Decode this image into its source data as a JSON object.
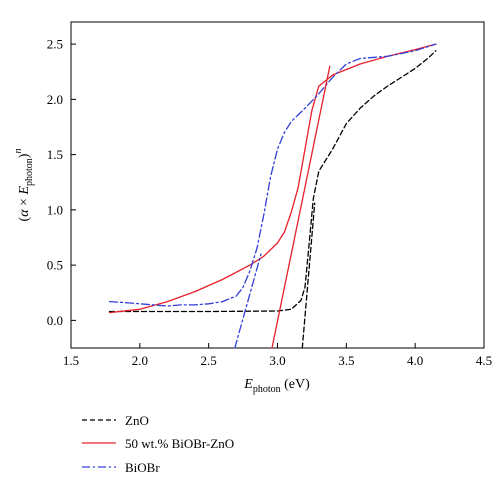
{
  "chart_data": {
    "type": "line",
    "title": "",
    "xlabel": {
      "base": "E",
      "sub": "photon",
      "unit": " (eV)"
    },
    "ylabel": {
      "lparen": "(",
      "alpha": "α",
      "times": " × ",
      "base": "E",
      "sub": "photon",
      "rparen": ")",
      "sup": "n"
    },
    "xlim": [
      1.5,
      4.5
    ],
    "ylim": [
      -0.25,
      2.7
    ],
    "xticks": [
      1.5,
      2.0,
      2.5,
      3.0,
      3.5,
      4.0,
      4.5
    ],
    "yticks": [
      0.0,
      0.5,
      1.0,
      1.5,
      2.0,
      2.5
    ],
    "xtick_labels": [
      "1.5",
      "2.0",
      "2.5",
      "3.0",
      "3.5",
      "4.0",
      "4.5"
    ],
    "ytick_labels": [
      "0.0",
      "0.5",
      "1.0",
      "1.5",
      "2.0",
      "2.5"
    ],
    "grid": false,
    "legend_position": "below-left",
    "series": [
      {
        "name": "ZnO",
        "color": "#000000",
        "style": "dashed",
        "points": [
          [
            1.78,
            0.08
          ],
          [
            2.0,
            0.08
          ],
          [
            2.5,
            0.08
          ],
          [
            3.0,
            0.085
          ],
          [
            3.1,
            0.1
          ],
          [
            3.17,
            0.18
          ],
          [
            3.2,
            0.3
          ],
          [
            3.23,
            0.7
          ],
          [
            3.26,
            1.1
          ],
          [
            3.3,
            1.35
          ],
          [
            3.4,
            1.55
          ],
          [
            3.5,
            1.78
          ],
          [
            3.6,
            1.92
          ],
          [
            3.7,
            2.03
          ],
          [
            3.8,
            2.12
          ],
          [
            3.9,
            2.2
          ],
          [
            4.0,
            2.28
          ],
          [
            4.1,
            2.38
          ],
          [
            4.15,
            2.44
          ]
        ]
      },
      {
        "name": "50 wt.% BiOBr-ZnO",
        "color": "#e8202a",
        "style": "solid",
        "points": [
          [
            1.78,
            0.07
          ],
          [
            2.0,
            0.1
          ],
          [
            2.2,
            0.17
          ],
          [
            2.4,
            0.26
          ],
          [
            2.6,
            0.37
          ],
          [
            2.8,
            0.5
          ],
          [
            2.9,
            0.58
          ],
          [
            3.0,
            0.7
          ],
          [
            3.05,
            0.8
          ],
          [
            3.1,
            0.98
          ],
          [
            3.15,
            1.2
          ],
          [
            3.2,
            1.55
          ],
          [
            3.25,
            1.9
          ],
          [
            3.3,
            2.12
          ],
          [
            3.4,
            2.22
          ],
          [
            3.6,
            2.32
          ],
          [
            3.8,
            2.39
          ],
          [
            4.0,
            2.45
          ],
          [
            4.15,
            2.5
          ]
        ]
      },
      {
        "name": "BiOBr",
        "color": "#3040d8",
        "style": "dashdot",
        "points": [
          [
            1.78,
            0.17
          ],
          [
            1.9,
            0.16
          ],
          [
            2.0,
            0.15
          ],
          [
            2.1,
            0.14
          ],
          [
            2.2,
            0.13
          ],
          [
            2.3,
            0.14
          ],
          [
            2.4,
            0.14
          ],
          [
            2.5,
            0.15
          ],
          [
            2.6,
            0.17
          ],
          [
            2.7,
            0.22
          ],
          [
            2.75,
            0.3
          ],
          [
            2.8,
            0.45
          ],
          [
            2.85,
            0.65
          ],
          [
            2.9,
            0.95
          ],
          [
            2.95,
            1.3
          ],
          [
            3.0,
            1.55
          ],
          [
            3.05,
            1.7
          ],
          [
            3.1,
            1.8
          ],
          [
            3.2,
            1.92
          ],
          [
            3.3,
            2.05
          ],
          [
            3.4,
            2.2
          ],
          [
            3.5,
            2.32
          ],
          [
            3.6,
            2.37
          ],
          [
            3.8,
            2.39
          ],
          [
            4.0,
            2.44
          ],
          [
            4.15,
            2.5
          ]
        ]
      },
      {
        "name": "",
        "color": "#e8202a",
        "style": "solid",
        "points": [
          [
            2.96,
            -0.25
          ],
          [
            3.38,
            2.3
          ]
        ]
      },
      {
        "name": "",
        "color": "#000000",
        "style": "dashed",
        "points": [
          [
            3.18,
            -0.25
          ],
          [
            3.27,
            1.06
          ]
        ]
      },
      {
        "name": "",
        "color": "#3040d8",
        "style": "dashdot",
        "points": [
          [
            2.69,
            -0.25
          ],
          [
            2.88,
            0.6
          ]
        ]
      }
    ]
  },
  "legend": [
    {
      "label": "ZnO",
      "color": "#000000",
      "style": "dashed"
    },
    {
      "label": "50 wt.% BiOBr-ZnO",
      "color": "#e8202a",
      "style": "solid"
    },
    {
      "label": "BiOBr",
      "color": "#3040d8",
      "style": "dashdot"
    }
  ]
}
